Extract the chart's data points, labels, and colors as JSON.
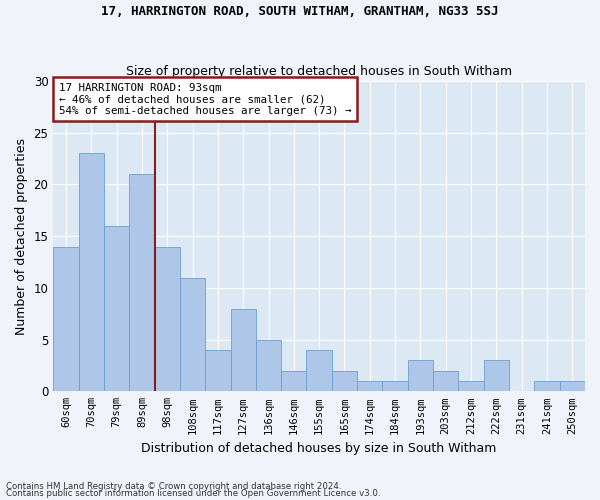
{
  "title": "17, HARRINGTON ROAD, SOUTH WITHAM, GRANTHAM, NG33 5SJ",
  "subtitle": "Size of property relative to detached houses in South Witham",
  "xlabel": "Distribution of detached houses by size in South Witham",
  "ylabel": "Number of detached properties",
  "categories": [
    "60sqm",
    "70sqm",
    "79sqm",
    "89sqm",
    "98sqm",
    "108sqm",
    "117sqm",
    "127sqm",
    "136sqm",
    "146sqm",
    "155sqm",
    "165sqm",
    "174sqm",
    "184sqm",
    "193sqm",
    "203sqm",
    "212sqm",
    "222sqm",
    "231sqm",
    "241sqm",
    "250sqm"
  ],
  "values": [
    14,
    23,
    16,
    21,
    14,
    11,
    4,
    8,
    5,
    2,
    4,
    2,
    1,
    1,
    3,
    2,
    1,
    3,
    0,
    1,
    1
  ],
  "bar_color": "#aec6e8",
  "bar_edgecolor": "#6a9fd0",
  "vline_color": "#8b1a1a",
  "vline_x_index": 3.5,
  "annotation_box_text": "17 HARRINGTON ROAD: 93sqm\n← 46% of detached houses are smaller (62)\n54% of semi-detached houses are larger (73) →",
  "annotation_box_color": "#8b1a1a",
  "annotation_box_bg": "#ffffff",
  "ylim": [
    0,
    30
  ],
  "yticks": [
    0,
    5,
    10,
    15,
    20,
    25,
    30
  ],
  "fig_background_color": "#f0f4fa",
  "ax_background_color": "#dce9f5",
  "grid_color": "#ffffff",
  "footer_line1": "Contains HM Land Registry data © Crown copyright and database right 2024.",
  "footer_line2": "Contains public sector information licensed under the Open Government Licence v3.0."
}
